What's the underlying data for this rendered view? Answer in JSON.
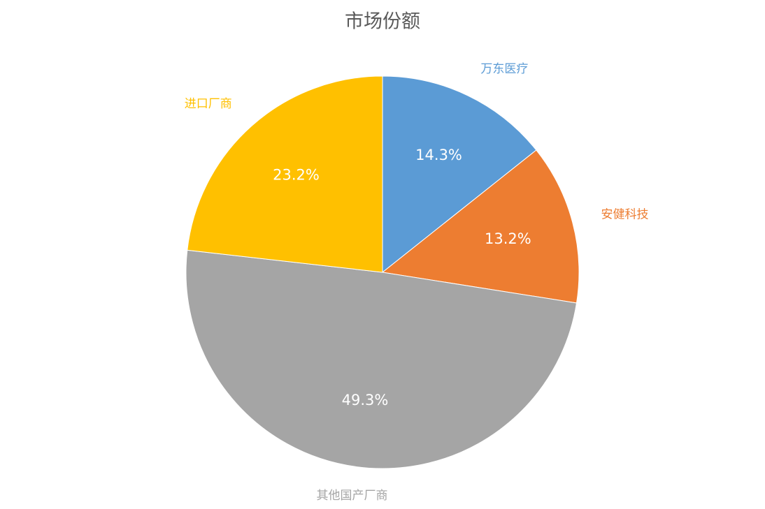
{
  "chart_data": {
    "type": "pie",
    "title": "市场份额",
    "categories": [
      "万东医疗",
      "安健科技",
      "其他国产厂商",
      "进口厂商"
    ],
    "values": [
      14.3,
      13.2,
      49.3,
      23.2
    ],
    "value_labels": [
      "14.3%",
      "13.2%",
      "49.3%",
      "23.2%"
    ],
    "colors": [
      "#5b9bd5",
      "#ed7d31",
      "#a5a5a5",
      "#ffc000"
    ]
  }
}
